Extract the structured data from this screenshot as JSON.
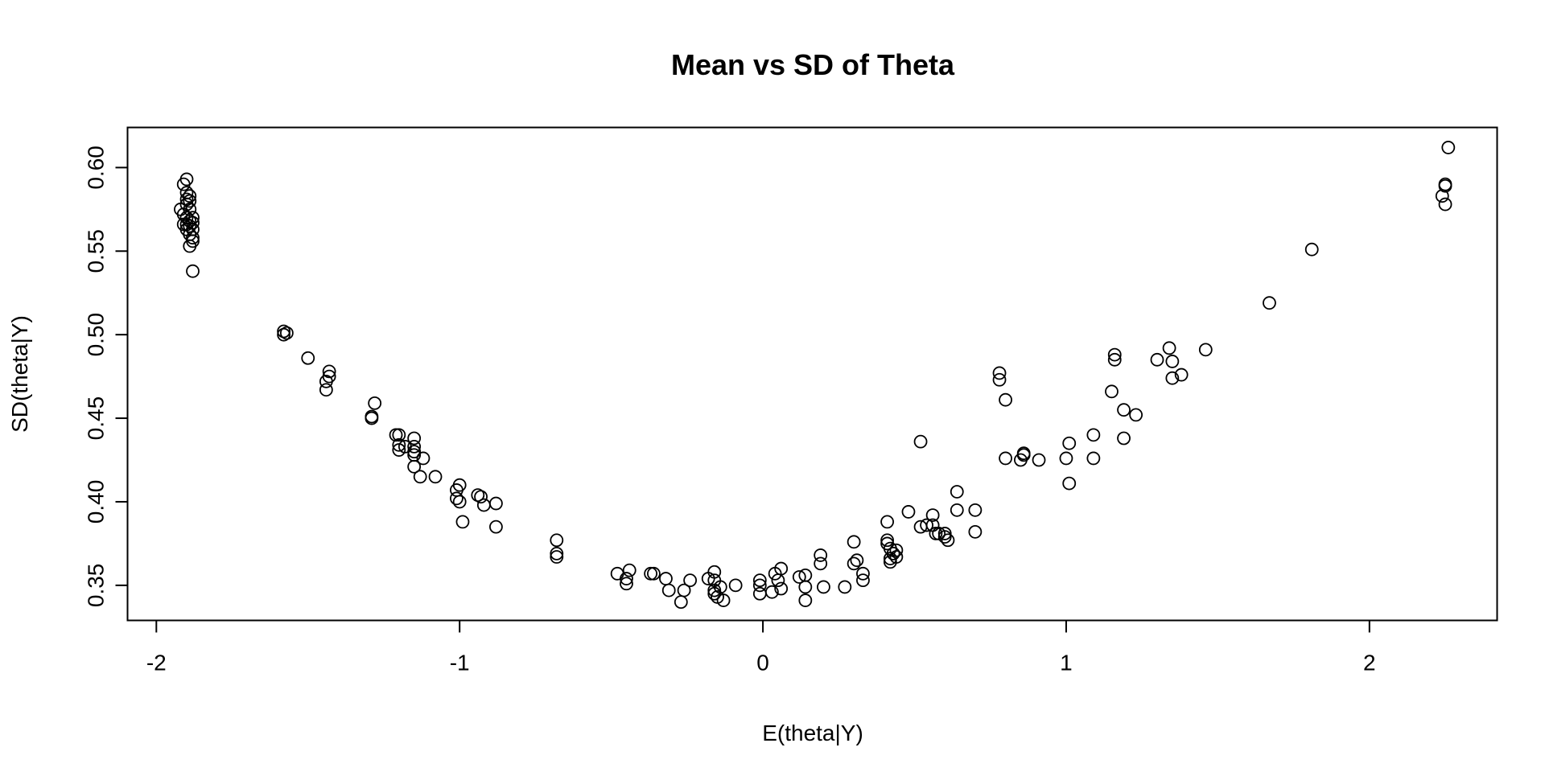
{
  "chart_data": {
    "type": "scatter",
    "title": "Mean vs SD of Theta",
    "xlabel": "E(theta|Y)",
    "ylabel": "SD(theta|Y)",
    "xlim": [
      -2.095,
      2.421
    ],
    "ylim": [
      0.329,
      0.624
    ],
    "xticks": [
      -2,
      -1,
      0,
      1,
      2
    ],
    "xtick_labels": [
      "-2",
      "-1",
      "0",
      "1",
      "2"
    ],
    "yticks": [
      0.35,
      0.4,
      0.45,
      0.5,
      0.55,
      0.6
    ],
    "ytick_labels": [
      "0.35",
      "0.40",
      "0.45",
      "0.50",
      "0.55",
      "0.60"
    ],
    "grid": false,
    "marker": "open-circle",
    "color": "#000000",
    "points": [
      [
        -1.92,
        0.575
      ],
      [
        -1.91,
        0.59
      ],
      [
        -1.9,
        0.593
      ],
      [
        -1.9,
        0.585
      ],
      [
        -1.89,
        0.583
      ],
      [
        -1.89,
        0.58
      ],
      [
        -1.9,
        0.578
      ],
      [
        -1.91,
        0.572
      ],
      [
        -1.9,
        0.57
      ],
      [
        -1.89,
        0.568
      ],
      [
        -1.88,
        0.57
      ],
      [
        -1.9,
        0.566
      ],
      [
        -1.89,
        0.565
      ],
      [
        -1.88,
        0.563
      ],
      [
        -1.89,
        0.56
      ],
      [
        -1.88,
        0.558
      ],
      [
        -1.89,
        0.553
      ],
      [
        -1.88,
        0.556
      ],
      [
        -1.88,
        0.538
      ],
      [
        -1.91,
        0.566
      ],
      [
        -1.9,
        0.563
      ],
      [
        -1.89,
        0.575
      ],
      [
        -1.88,
        0.567
      ],
      [
        -1.9,
        0.581
      ],
      [
        -1.58,
        0.502
      ],
      [
        -1.58,
        0.5
      ],
      [
        -1.57,
        0.501
      ],
      [
        -1.5,
        0.486
      ],
      [
        -1.43,
        0.478
      ],
      [
        -1.43,
        0.475
      ],
      [
        -1.44,
        0.472
      ],
      [
        -1.44,
        0.467
      ],
      [
        -1.29,
        0.451
      ],
      [
        -1.29,
        0.45
      ],
      [
        -1.28,
        0.459
      ],
      [
        -1.21,
        0.44
      ],
      [
        -1.2,
        0.44
      ],
      [
        -1.2,
        0.434
      ],
      [
        -1.2,
        0.431
      ],
      [
        -1.18,
        0.433
      ],
      [
        -1.15,
        0.438
      ],
      [
        -1.15,
        0.433
      ],
      [
        -1.15,
        0.43
      ],
      [
        -1.15,
        0.428
      ],
      [
        -1.15,
        0.421
      ],
      [
        -1.12,
        0.426
      ],
      [
        -1.13,
        0.415
      ],
      [
        -1.08,
        0.415
      ],
      [
        -1.0,
        0.41
      ],
      [
        -1.01,
        0.407
      ],
      [
        -1.01,
        0.402
      ],
      [
        -1.0,
        0.4
      ],
      [
        -0.99,
        0.388
      ],
      [
        -0.94,
        0.404
      ],
      [
        -0.93,
        0.403
      ],
      [
        -0.92,
        0.398
      ],
      [
        -0.88,
        0.399
      ],
      [
        -0.88,
        0.385
      ],
      [
        -0.68,
        0.377
      ],
      [
        -0.68,
        0.369
      ],
      [
        -0.68,
        0.367
      ],
      [
        -0.48,
        0.357
      ],
      [
        -0.45,
        0.351
      ],
      [
        -0.45,
        0.354
      ],
      [
        -0.44,
        0.359
      ],
      [
        -0.37,
        0.357
      ],
      [
        -0.36,
        0.357
      ],
      [
        -0.32,
        0.354
      ],
      [
        -0.31,
        0.347
      ],
      [
        -0.27,
        0.34
      ],
      [
        -0.26,
        0.347
      ],
      [
        -0.24,
        0.353
      ],
      [
        -0.18,
        0.354
      ],
      [
        -0.16,
        0.358
      ],
      [
        -0.16,
        0.353
      ],
      [
        -0.16,
        0.347
      ],
      [
        -0.16,
        0.345
      ],
      [
        -0.15,
        0.343
      ],
      [
        -0.14,
        0.349
      ],
      [
        -0.13,
        0.341
      ],
      [
        -0.09,
        0.35
      ],
      [
        -0.01,
        0.353
      ],
      [
        -0.01,
        0.35
      ],
      [
        -0.01,
        0.345
      ],
      [
        0.03,
        0.346
      ],
      [
        0.04,
        0.357
      ],
      [
        0.05,
        0.353
      ],
      [
        0.06,
        0.36
      ],
      [
        0.06,
        0.348
      ],
      [
        0.12,
        0.355
      ],
      [
        0.14,
        0.356
      ],
      [
        0.14,
        0.349
      ],
      [
        0.14,
        0.341
      ],
      [
        0.19,
        0.368
      ],
      [
        0.19,
        0.363
      ],
      [
        0.2,
        0.349
      ],
      [
        0.27,
        0.349
      ],
      [
        0.3,
        0.376
      ],
      [
        0.3,
        0.363
      ],
      [
        0.31,
        0.365
      ],
      [
        0.33,
        0.357
      ],
      [
        0.33,
        0.353
      ],
      [
        0.41,
        0.388
      ],
      [
        0.41,
        0.377
      ],
      [
        0.41,
        0.375
      ],
      [
        0.42,
        0.372
      ],
      [
        0.42,
        0.366
      ],
      [
        0.42,
        0.364
      ],
      [
        0.43,
        0.369
      ],
      [
        0.44,
        0.371
      ],
      [
        0.44,
        0.367
      ],
      [
        0.48,
        0.394
      ],
      [
        0.52,
        0.385
      ],
      [
        0.52,
        0.436
      ],
      [
        0.54,
        0.386
      ],
      [
        0.56,
        0.392
      ],
      [
        0.56,
        0.386
      ],
      [
        0.57,
        0.381
      ],
      [
        0.58,
        0.381
      ],
      [
        0.6,
        0.381
      ],
      [
        0.6,
        0.379
      ],
      [
        0.61,
        0.377
      ],
      [
        0.64,
        0.406
      ],
      [
        0.64,
        0.395
      ],
      [
        0.7,
        0.395
      ],
      [
        0.7,
        0.382
      ],
      [
        0.78,
        0.477
      ],
      [
        0.78,
        0.473
      ],
      [
        0.8,
        0.461
      ],
      [
        0.8,
        0.426
      ],
      [
        0.85,
        0.425
      ],
      [
        0.86,
        0.428
      ],
      [
        0.86,
        0.429
      ],
      [
        0.91,
        0.425
      ],
      [
        1.01,
        0.435
      ],
      [
        1.0,
        0.426
      ],
      [
        1.01,
        0.411
      ],
      [
        1.09,
        0.44
      ],
      [
        1.09,
        0.426
      ],
      [
        1.15,
        0.466
      ],
      [
        1.16,
        0.488
      ],
      [
        1.16,
        0.485
      ],
      [
        1.19,
        0.455
      ],
      [
        1.19,
        0.438
      ],
      [
        1.23,
        0.452
      ],
      [
        1.3,
        0.485
      ],
      [
        1.34,
        0.492
      ],
      [
        1.35,
        0.484
      ],
      [
        1.35,
        0.474
      ],
      [
        1.38,
        0.476
      ],
      [
        1.46,
        0.491
      ],
      [
        1.67,
        0.519
      ],
      [
        1.81,
        0.551
      ],
      [
        2.24,
        0.583
      ],
      [
        2.25,
        0.59
      ],
      [
        2.25,
        0.589
      ],
      [
        2.25,
        0.578
      ],
      [
        2.26,
        0.612
      ]
    ]
  }
}
